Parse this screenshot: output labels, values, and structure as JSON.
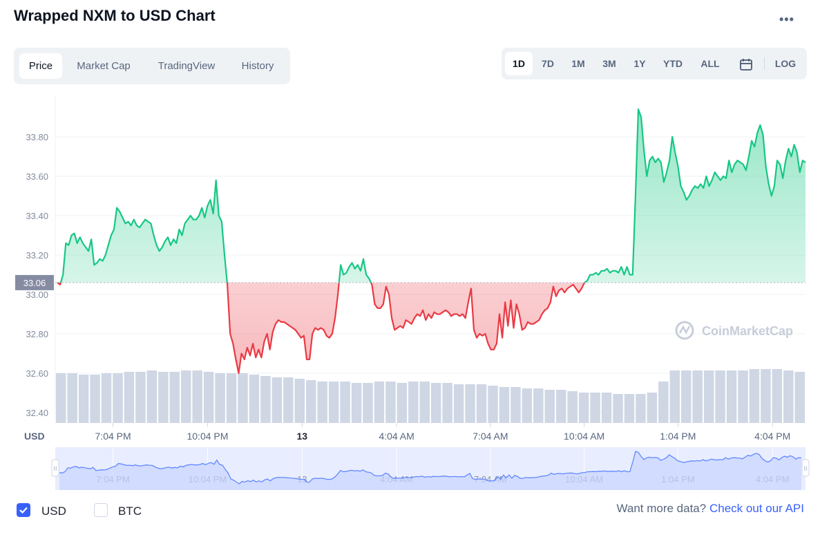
{
  "header": {
    "title": "Wrapped NXM to USD Chart",
    "more_icon": "more-horizontal-icon"
  },
  "tabs": [
    {
      "label": "Price",
      "active": true
    },
    {
      "label": "Market Cap",
      "active": false
    },
    {
      "label": "TradingView",
      "active": false
    },
    {
      "label": "History",
      "active": false
    }
  ],
  "ranges": [
    {
      "label": "1D",
      "active": true
    },
    {
      "label": "7D",
      "active": false
    },
    {
      "label": "1M",
      "active": false
    },
    {
      "label": "3M",
      "active": false
    },
    {
      "label": "1Y",
      "active": false
    },
    {
      "label": "YTD",
      "active": false
    },
    {
      "label": "ALL",
      "active": false
    }
  ],
  "range_extras": {
    "calendar_icon": "calendar-icon",
    "log_label": "LOG"
  },
  "chart_data": {
    "type": "area",
    "currency_label": "USD",
    "watermark": "CoinMarketCap",
    "y_ticks": [
      "32.40",
      "32.60",
      "32.80",
      "33.00",
      "33.20",
      "33.40",
      "33.60",
      "33.80"
    ],
    "ylim": [
      32.35,
      34.0
    ],
    "x_ticks": [
      {
        "label": "7:04 PM",
        "t": 0.077
      },
      {
        "label": "10:04 PM",
        "t": 0.203,
        "bold": false
      },
      {
        "label": "13",
        "t": 0.329,
        "bold": true
      },
      {
        "label": "4:04 AM",
        "t": 0.455
      },
      {
        "label": "7:04 AM",
        "t": 0.58
      },
      {
        "label": "10:04 AM",
        "t": 0.705
      },
      {
        "label": "1:04 PM",
        "t": 0.83
      },
      {
        "label": "4:04 PM",
        "t": 0.956
      }
    ],
    "baseline": {
      "value": 33.06,
      "label": "33.06"
    },
    "colors": {
      "up": "#16c784",
      "down": "#ea3943",
      "brush": "#6188ff",
      "volume": "#cfd6e4"
    },
    "series": [
      {
        "values": [
          33.06,
          33.05,
          33.1,
          33.26,
          33.25,
          33.3,
          33.31,
          33.26,
          33.29,
          33.26,
          33.24,
          33.22,
          33.28,
          33.15,
          33.16,
          33.18,
          33.17,
          33.2,
          33.25,
          33.3,
          33.33,
          33.44,
          33.42,
          33.39,
          33.36,
          33.37,
          33.35,
          33.38,
          33.35,
          33.34,
          33.36,
          33.38,
          33.37,
          33.36,
          33.3,
          33.25,
          33.22,
          33.24,
          33.27,
          33.29,
          33.25,
          33.28,
          33.26,
          33.33,
          33.3,
          33.36,
          33.38,
          33.4,
          33.38,
          33.38,
          33.4,
          33.44,
          33.39,
          33.45,
          33.48,
          33.41,
          33.58,
          33.4,
          33.37,
          33.2,
          33.05,
          32.8,
          32.75,
          32.67,
          32.6,
          32.7,
          32.67,
          32.73,
          32.69,
          32.75,
          32.68,
          32.72,
          32.68,
          32.76,
          32.8,
          32.72,
          32.81,
          32.85,
          32.87,
          32.86,
          32.86,
          32.85,
          32.84,
          32.83,
          32.82,
          32.8,
          32.78,
          32.79,
          32.67,
          32.67,
          32.8,
          32.83,
          32.82,
          32.83,
          32.82,
          32.79,
          32.78,
          32.8,
          32.88,
          33.0,
          33.15,
          33.1,
          33.11,
          33.14,
          33.16,
          33.13,
          33.15,
          33.12,
          33.18,
          33.1,
          33.08,
          33.05,
          32.95,
          32.93,
          32.93,
          32.95,
          33.04,
          33.0,
          32.88,
          32.82,
          32.83,
          32.84,
          32.83,
          32.87,
          32.86,
          32.85,
          32.88,
          32.9,
          32.89,
          32.92,
          32.87,
          32.9,
          32.88,
          32.91,
          32.9,
          32.9,
          32.91,
          32.92,
          32.91,
          32.89,
          32.9,
          32.9,
          32.89,
          32.9,
          32.88,
          32.96,
          33.03,
          32.82,
          32.78,
          32.8,
          32.79,
          32.8,
          32.75,
          32.72,
          32.72,
          32.75,
          32.9,
          32.78,
          32.96,
          32.84,
          32.97,
          32.83,
          32.95,
          32.9,
          32.82,
          32.83,
          32.86,
          32.85,
          32.85,
          32.86,
          32.87,
          32.9,
          32.92,
          32.93,
          32.96,
          33.04,
          32.99,
          33.02,
          33.03,
          33.01,
          33.03,
          33.04,
          33.05,
          33.03,
          33.01,
          33.03,
          33.06,
          33.07,
          33.1,
          33.1,
          33.11,
          33.1,
          33.12,
          33.12,
          33.13,
          33.11,
          33.12,
          33.12,
          33.11,
          33.14,
          33.1,
          33.14,
          33.1,
          33.1,
          33.5,
          33.94,
          33.9,
          33.73,
          33.6,
          33.68,
          33.7,
          33.67,
          33.69,
          33.67,
          33.57,
          33.62,
          33.68,
          33.8,
          33.72,
          33.65,
          33.55,
          33.52,
          33.48,
          33.5,
          33.53,
          33.55,
          33.54,
          33.56,
          33.54,
          33.6,
          33.55,
          33.58,
          33.62,
          33.6,
          33.58,
          33.6,
          33.59,
          33.68,
          33.62,
          33.66,
          33.68,
          33.67,
          33.66,
          33.63,
          33.7,
          33.78,
          33.75,
          33.82,
          33.86,
          33.81,
          33.65,
          33.56,
          33.5,
          33.55,
          33.68,
          33.66,
          33.59,
          33.68,
          33.74,
          33.7,
          33.76,
          33.72,
          33.62,
          33.68,
          33.67
        ]
      }
    ],
    "volume": [
      0.36,
      0.36,
      0.35,
      0.35,
      0.36,
      0.36,
      0.37,
      0.37,
      0.38,
      0.37,
      0.37,
      0.38,
      0.38,
      0.37,
      0.36,
      0.36,
      0.36,
      0.35,
      0.34,
      0.33,
      0.33,
      0.32,
      0.31,
      0.3,
      0.3,
      0.3,
      0.29,
      0.29,
      0.3,
      0.3,
      0.29,
      0.3,
      0.3,
      0.29,
      0.29,
      0.28,
      0.28,
      0.28,
      0.27,
      0.26,
      0.26,
      0.25,
      0.25,
      0.24,
      0.24,
      0.23,
      0.22,
      0.22,
      0.22,
      0.21,
      0.21,
      0.21,
      0.22,
      0.3,
      0.38,
      0.38,
      0.38,
      0.38,
      0.38,
      0.38,
      0.38,
      0.39,
      0.39,
      0.39,
      0.38,
      0.37
    ]
  },
  "brush": {
    "grip_left": "II",
    "grip_right": "II"
  },
  "footer": {
    "usd_label": "USD",
    "btc_label": "BTC",
    "usd_checked": true,
    "btc_checked": false,
    "api_text": "Want more data?",
    "api_link": "Check out our API",
    "check_icon": "checkmark-icon"
  }
}
